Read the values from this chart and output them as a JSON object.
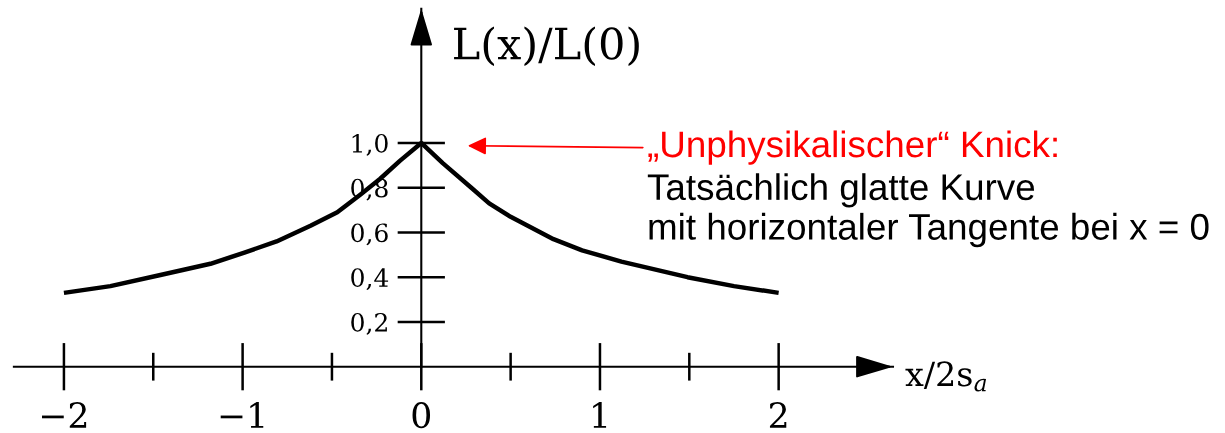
{
  "chart_data": {
    "type": "line",
    "xlabel": "x/2s$_{a}$",
    "ylabel": "L(x)/L(0)",
    "x": [
      -2.0,
      -1.74,
      -1.46,
      -1.18,
      -0.99,
      -0.81,
      -0.62,
      -0.47,
      -0.34,
      -0.23,
      -0.12,
      0,
      0.12,
      0.28,
      0.38,
      0.5,
      0.74,
      0.9,
      1.12,
      1.49,
      1.75,
      2.0
    ],
    "series": [
      {
        "color": "#000000",
        "values": [
          0.33,
          0.36,
          0.41,
          0.46,
          0.51,
          0.56,
          0.63,
          0.69,
          0.77,
          0.84,
          0.92,
          1.0,
          0.91,
          0.8,
          0.73,
          0.67,
          0.57,
          0.52,
          0.47,
          0.4,
          0.36,
          0.33
        ]
      }
    ],
    "xlim": [
      -2.28,
      2.64
    ],
    "ylim": [
      0,
      1.6
    ],
    "xticks": [
      {
        "value": -2,
        "label": "−2"
      },
      {
        "value": -1.5,
        "label": null
      },
      {
        "value": -1,
        "label": "−1"
      },
      {
        "value": -0.5,
        "label": null
      },
      0,
      {
        "value": 0.5,
        "label": null
      },
      1,
      {
        "value": 1.5,
        "label": null
      },
      2
    ],
    "yticks": [
      {
        "value": 0.2,
        "label": "0,2"
      },
      {
        "value": 0.4,
        "label": "0,4"
      },
      {
        "value": 0.6,
        "label": "0,6"
      },
      {
        "value": 0.8,
        "label": "0,8"
      },
      {
        "value": 1.0,
        "label": "1,0"
      }
    ],
    "annotations": [
      "„Unphysikalischer“ Knick:",
      "Tatsächlich glatte Kurve\nmit horizontaler Tangente bei x = 0"
    ]
  }
}
